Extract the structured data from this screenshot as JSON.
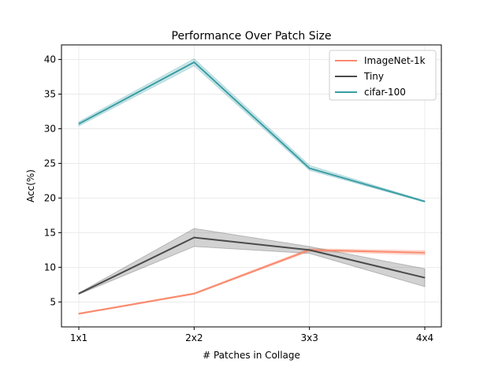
{
  "chart_data": {
    "type": "line",
    "title": "Performance Over Patch Size",
    "xlabel": "# Patches in Collage",
    "ylabel": "Acc(%)",
    "categories": [
      "1x1",
      "2x2",
      "3x3",
      "4x4"
    ],
    "ylim": [
      1.4,
      42.1
    ],
    "yticks": [
      5,
      10,
      15,
      20,
      25,
      30,
      35,
      40
    ],
    "grid": true,
    "legend_position": "top-right",
    "series": [
      {
        "name": "ImageNet-1k",
        "color": "#fa8a6e",
        "values": [
          3.3,
          6.2,
          12.5,
          12.1
        ],
        "lower": [
          3.2,
          6.1,
          12.3,
          11.8
        ],
        "upper": [
          3.4,
          6.3,
          12.7,
          12.4
        ]
      },
      {
        "name": "Tiny",
        "color": "#4a4a4a",
        "values": [
          6.2,
          14.3,
          12.5,
          8.5
        ],
        "lower": [
          6.1,
          13.0,
          12.0,
          7.2
        ],
        "upper": [
          6.3,
          15.6,
          13.0,
          9.8
        ]
      },
      {
        "name": "cifar-100",
        "color": "#3a9ea5",
        "values": [
          30.7,
          39.6,
          24.3,
          19.5
        ],
        "lower": [
          30.4,
          39.1,
          24.0,
          19.4
        ],
        "upper": [
          31.0,
          40.1,
          24.7,
          19.6
        ]
      }
    ]
  }
}
